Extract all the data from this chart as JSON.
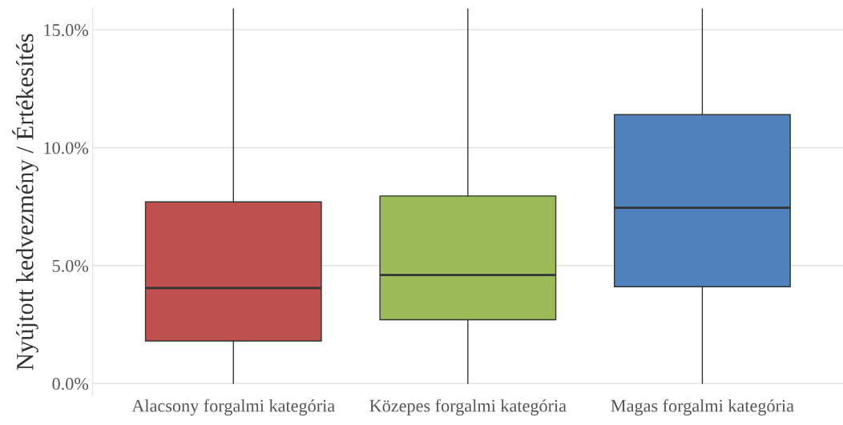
{
  "chart_data": {
    "type": "box",
    "ylabel": "Nyújtott kedvezmény / Értékesítés",
    "categories": [
      "Alacsony forgalmi kategória",
      "Közepes forgalmi kategória",
      "Magas forgalmi kategória"
    ],
    "boxes": [
      {
        "low": 0.0,
        "q1": 1.8,
        "median": 4.05,
        "q3": 7.7,
        "high": 15.9
      },
      {
        "low": 0.0,
        "q1": 2.7,
        "median": 4.6,
        "q3": 7.95,
        "high": 15.9
      },
      {
        "low": 0.0,
        "q1": 4.1,
        "median": 7.45,
        "q3": 11.4,
        "high": 15.9
      }
    ],
    "colors": [
      "#c0504d",
      "#9bbb59",
      "#4f81bd"
    ],
    "ylim": [
      -0.5,
      15.9
    ],
    "yticks": [
      {
        "value": 0,
        "label": "0.0%"
      },
      {
        "value": 5,
        "label": "5.0%"
      },
      {
        "value": 10,
        "label": "10.0%"
      },
      {
        "value": 15,
        "label": "15.0%"
      }
    ],
    "grid": "y"
  }
}
